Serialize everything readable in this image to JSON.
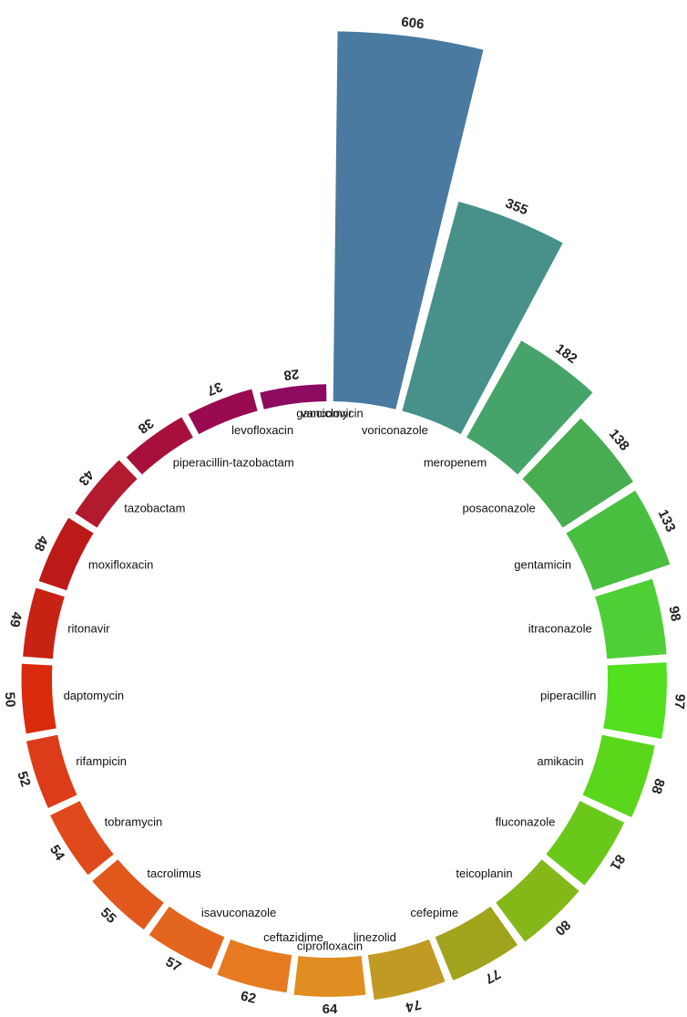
{
  "chart_data": {
    "type": "radial-bar",
    "categories": [
      "vancomycin",
      "voriconazole",
      "meropenem",
      "posaconazole",
      "gentamicin",
      "itraconazole",
      "piperacillin",
      "amikacin",
      "fluconazole",
      "teicoplanin",
      "cefepime",
      "linezolid",
      "ciprofloxacin",
      "ceftazidime",
      "isavuconazole",
      "tacrolimus",
      "tobramycin",
      "rifampicin",
      "daptomycin",
      "ritonavir",
      "moxifloxacin",
      "tazobactam",
      "piperacillin-tazobactam",
      "levofloxacin",
      "ganciclovir"
    ],
    "values": [
      606,
      355,
      182,
      138,
      133,
      98,
      97,
      88,
      81,
      80,
      77,
      74,
      64,
      62,
      57,
      55,
      54,
      52,
      50,
      49,
      48,
      43,
      38,
      37,
      28
    ],
    "colors": [
      "#4a7aa0",
      "#47918a",
      "#46a36a",
      "#48ad50",
      "#48bf3f",
      "#4dcf35",
      "#52e01f",
      "#5ad61b",
      "#6ac81a",
      "#84b818",
      "#a0a41c",
      "#c09a24",
      "#e08e22",
      "#e57a20",
      "#e2661e",
      "#e0581c",
      "#de4a1c",
      "#dc3c1a",
      "#da2a0c",
      "#c82312",
      "#bc1a18",
      "#b21a30",
      "#a8103c",
      "#9a0a50",
      "#8c0a60"
    ],
    "ylim": [
      0,
      620
    ]
  }
}
